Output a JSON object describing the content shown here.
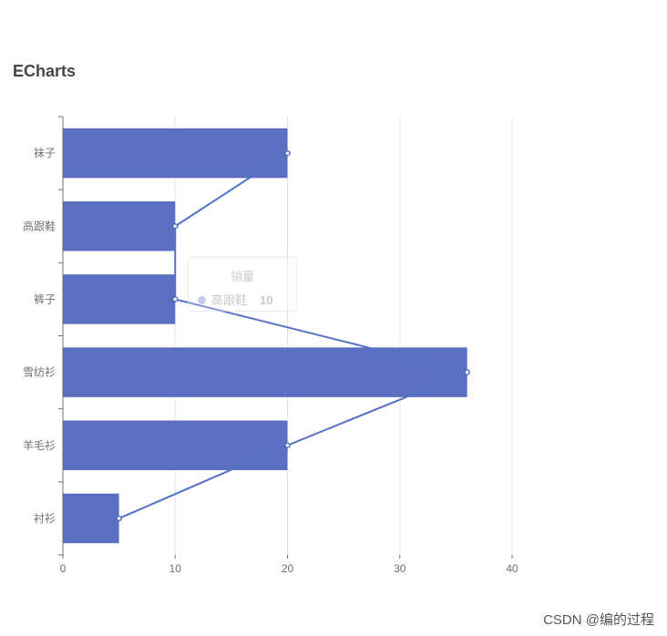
{
  "chart_data": {
    "type": "bar",
    "title": "ECharts",
    "categories": [
      "衬衫",
      "羊毛衫",
      "雪纺衫",
      "裤子",
      "高跟鞋",
      "袜子"
    ],
    "series": [
      {
        "type": "bar",
        "values": [
          5,
          20,
          36,
          10,
          10,
          20
        ]
      },
      {
        "type": "line",
        "values": [
          5,
          20,
          36,
          10,
          10,
          20
        ]
      }
    ],
    "x_ticks": [
      0,
      10,
      20,
      30,
      40
    ],
    "xlim": [
      0,
      40
    ],
    "grid": "vertical",
    "colors": {
      "bar": "#5a6fc0",
      "line": "#5470c6",
      "axis": "#6e7079",
      "grid": "#e0e6f1",
      "label": "#6e7079"
    },
    "tooltip": {
      "title": "销量",
      "label": "高跟鞋",
      "value": "10"
    }
  },
  "watermark": "CSDN @编的过程"
}
